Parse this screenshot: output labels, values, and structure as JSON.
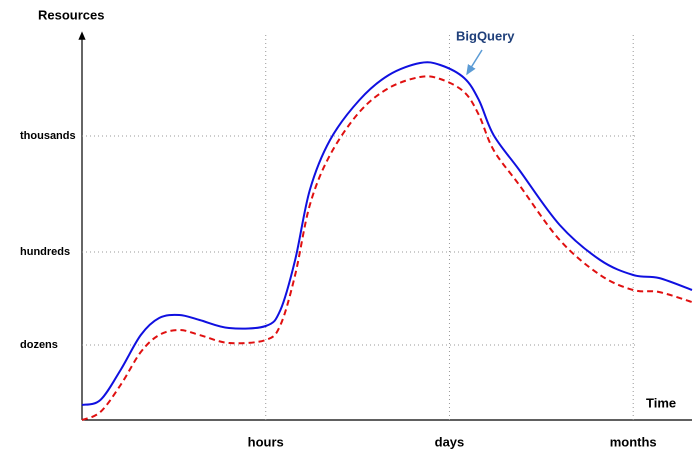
{
  "chart_data": {
    "type": "line",
    "y_label": "Resources",
    "x_label": "Time",
    "x": [
      0,
      0.1,
      0.21,
      0.32,
      0.42,
      0.53,
      0.64,
      0.8,
      1,
      1.08,
      1.16,
      1.24,
      1.35,
      1.51,
      1.67,
      1.84,
      1.95,
      2.08,
      2.16,
      2.24,
      2.38,
      2.6,
      2.82,
      3,
      3.14,
      3.32
    ],
    "series": [
      {
        "name": "BigQuery",
        "color": "#1010e0",
        "dashed": false,
        "values": [
          0.15,
          0.2,
          0.5,
          0.85,
          1.02,
          1.05,
          1,
          0.92,
          0.94,
          1.1,
          1.6,
          2.3,
          2.8,
          3.2,
          3.45,
          3.57,
          3.55,
          3.42,
          3.2,
          2.85,
          2.5,
          1.95,
          1.6,
          1.45,
          1.42,
          1.3
        ]
      },
      {
        "color": "#e01010",
        "dashed": true,
        "values": [
          0,
          0.08,
          0.35,
          0.68,
          0.85,
          0.9,
          0.85,
          0.77,
          0.8,
          0.95,
          1.45,
          2.15,
          2.65,
          3.08,
          3.32,
          3.43,
          3.41,
          3.28,
          3.05,
          2.7,
          2.35,
          1.8,
          1.45,
          1.3,
          1.28,
          1.18
        ]
      }
    ],
    "xlim": [
      0,
      3.32
    ],
    "ylim": [
      0,
      3.85
    ],
    "xticks": [
      {
        "value": 1,
        "label": "hours"
      },
      {
        "value": 2,
        "label": "days"
      },
      {
        "value": 3,
        "label": "months"
      }
    ],
    "yticks": [
      {
        "value": 0.75,
        "label": "dozens"
      },
      {
        "value": 1.68,
        "label": "hundreds"
      },
      {
        "value": 2.84,
        "label": "thousands"
      }
    ],
    "grid": true
  }
}
